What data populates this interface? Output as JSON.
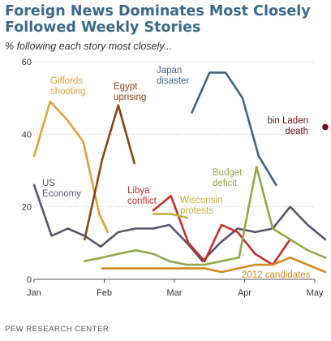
{
  "header": {
    "title": "Foreign News Dominates Most Closely Followed Weekly Stories",
    "subtitle": "% following each story most closely..."
  },
  "footer": {
    "source": "PEW RESEARCH CENTER"
  },
  "chart_data": {
    "type": "line",
    "title": "Foreign News Dominates Most Closely Followed Weekly Stories",
    "subtitle": "% following each story most closely...",
    "xlabel": "",
    "ylabel": "",
    "x_axis": {
      "tick_labels": [
        "Jan",
        "Feb",
        "Mar",
        "Apr",
        "May"
      ],
      "range": [
        "Jan 1",
        "May 1"
      ]
    },
    "ylim": [
      0,
      60
    ],
    "y_ticks": [
      0,
      20,
      40,
      60
    ],
    "grid": true,
    "legend": "none (series labeled directly on chart)",
    "series": [
      {
        "name": "Giffords shooting",
        "label_lines": [
          "Giffords",
          "shooting"
        ],
        "color": "#e0a23a",
        "points": [
          {
            "x": 0.0,
            "y": 34
          },
          {
            "x": 0.23,
            "y": 49
          },
          {
            "x": 0.47,
            "y": 44
          },
          {
            "x": 0.7,
            "y": 38
          },
          {
            "x": 0.93,
            "y": 18
          },
          {
            "x": 1.05,
            "y": 13
          }
        ]
      },
      {
        "name": "Egypt uprising",
        "label_lines": [
          "Egypt",
          "uprising"
        ],
        "color": "#8b4513",
        "points": [
          {
            "x": 0.72,
            "y": 11
          },
          {
            "x": 0.97,
            "y": 33
          },
          {
            "x": 1.2,
            "y": 48
          },
          {
            "x": 1.43,
            "y": 32
          }
        ]
      },
      {
        "name": "US Economy",
        "label_lines": [
          "US",
          "Economy"
        ],
        "color": "#5a5468",
        "points": [
          {
            "x": 0.0,
            "y": 26
          },
          {
            "x": 0.25,
            "y": 12
          },
          {
            "x": 0.48,
            "y": 14
          },
          {
            "x": 0.72,
            "y": 12
          },
          {
            "x": 0.95,
            "y": 9
          },
          {
            "x": 1.2,
            "y": 13
          },
          {
            "x": 1.45,
            "y": 14
          },
          {
            "x": 1.7,
            "y": 14
          },
          {
            "x": 1.93,
            "y": 15
          },
          {
            "x": 2.18,
            "y": 10
          },
          {
            "x": 2.4,
            "y": 5
          },
          {
            "x": 2.65,
            "y": 10
          },
          {
            "x": 2.9,
            "y": 14
          },
          {
            "x": 3.15,
            "y": 13
          },
          {
            "x": 3.4,
            "y": 14
          },
          {
            "x": 3.65,
            "y": 20
          },
          {
            "x": 3.9,
            "y": 15
          },
          {
            "x": 4.15,
            "y": 11
          }
        ]
      },
      {
        "name": "Japan disaster",
        "label_lines": [
          "Japan",
          "disaster"
        ],
        "color": "#3f6680",
        "points": [
          {
            "x": 2.25,
            "y": 46
          },
          {
            "x": 2.5,
            "y": 57
          },
          {
            "x": 2.73,
            "y": 57
          },
          {
            "x": 2.97,
            "y": 50
          },
          {
            "x": 3.2,
            "y": 34
          },
          {
            "x": 3.45,
            "y": 26
          }
        ]
      },
      {
        "name": "Libya conflict",
        "label_lines": [
          "Libya",
          "conflict"
        ],
        "color": "#c4302b",
        "points": [
          {
            "x": 1.7,
            "y": 19
          },
          {
            "x": 1.95,
            "y": 23
          },
          {
            "x": 2.2,
            "y": 10
          },
          {
            "x": 2.43,
            "y": 5
          },
          {
            "x": 2.67,
            "y": 15
          },
          {
            "x": 2.9,
            "y": 13
          },
          {
            "x": 3.15,
            "y": 7
          },
          {
            "x": 3.4,
            "y": 4
          },
          {
            "x": 3.65,
            "y": 11
          }
        ]
      },
      {
        "name": "Wisconsin protests",
        "label_lines": [
          "Wisconsin",
          "protests"
        ],
        "color": "#c2b340",
        "points": [
          {
            "x": 1.7,
            "y": 18
          },
          {
            "x": 1.95,
            "y": 18
          },
          {
            "x": 2.18,
            "y": 17
          }
        ]
      },
      {
        "name": "Budget deficit",
        "label_lines": [
          "Budget",
          "deficit"
        ],
        "color": "#93a84a",
        "points": [
          {
            "x": 0.72,
            "y": 5
          },
          {
            "x": 0.97,
            "y": 6
          },
          {
            "x": 1.2,
            "y": 7
          },
          {
            "x": 1.45,
            "y": 8
          },
          {
            "x": 1.7,
            "y": 7
          },
          {
            "x": 1.93,
            "y": 5
          },
          {
            "x": 2.18,
            "y": 4
          },
          {
            "x": 2.43,
            "y": 4
          },
          {
            "x": 2.67,
            "y": 5
          },
          {
            "x": 2.92,
            "y": 6
          },
          {
            "x": 3.17,
            "y": 31
          },
          {
            "x": 3.4,
            "y": 14
          },
          {
            "x": 3.65,
            "y": 11
          },
          {
            "x": 3.9,
            "y": 8
          },
          {
            "x": 4.15,
            "y": 6
          }
        ]
      },
      {
        "name": "2012 candidates",
        "label_lines": [
          "2012 candidates"
        ],
        "color": "#d08a1f",
        "points": [
          {
            "x": 0.97,
            "y": 3
          },
          {
            "x": 1.2,
            "y": 3
          },
          {
            "x": 1.45,
            "y": 3
          },
          {
            "x": 1.7,
            "y": 3
          },
          {
            "x": 1.93,
            "y": 3
          },
          {
            "x": 2.18,
            "y": 3
          },
          {
            "x": 2.43,
            "y": 3
          },
          {
            "x": 2.67,
            "y": 2
          },
          {
            "x": 2.9,
            "y": 3
          },
          {
            "x": 3.15,
            "y": 4
          },
          {
            "x": 3.4,
            "y": 4
          },
          {
            "x": 3.65,
            "y": 6
          },
          {
            "x": 3.9,
            "y": 4
          },
          {
            "x": 4.15,
            "y": 2
          }
        ]
      },
      {
        "name": "bin Laden death",
        "label_lines": [
          "bin Laden",
          "death"
        ],
        "color": "#6b0f1a",
        "points": [
          {
            "x": 4.15,
            "y": 42
          }
        ],
        "marker": "dot"
      }
    ]
  }
}
